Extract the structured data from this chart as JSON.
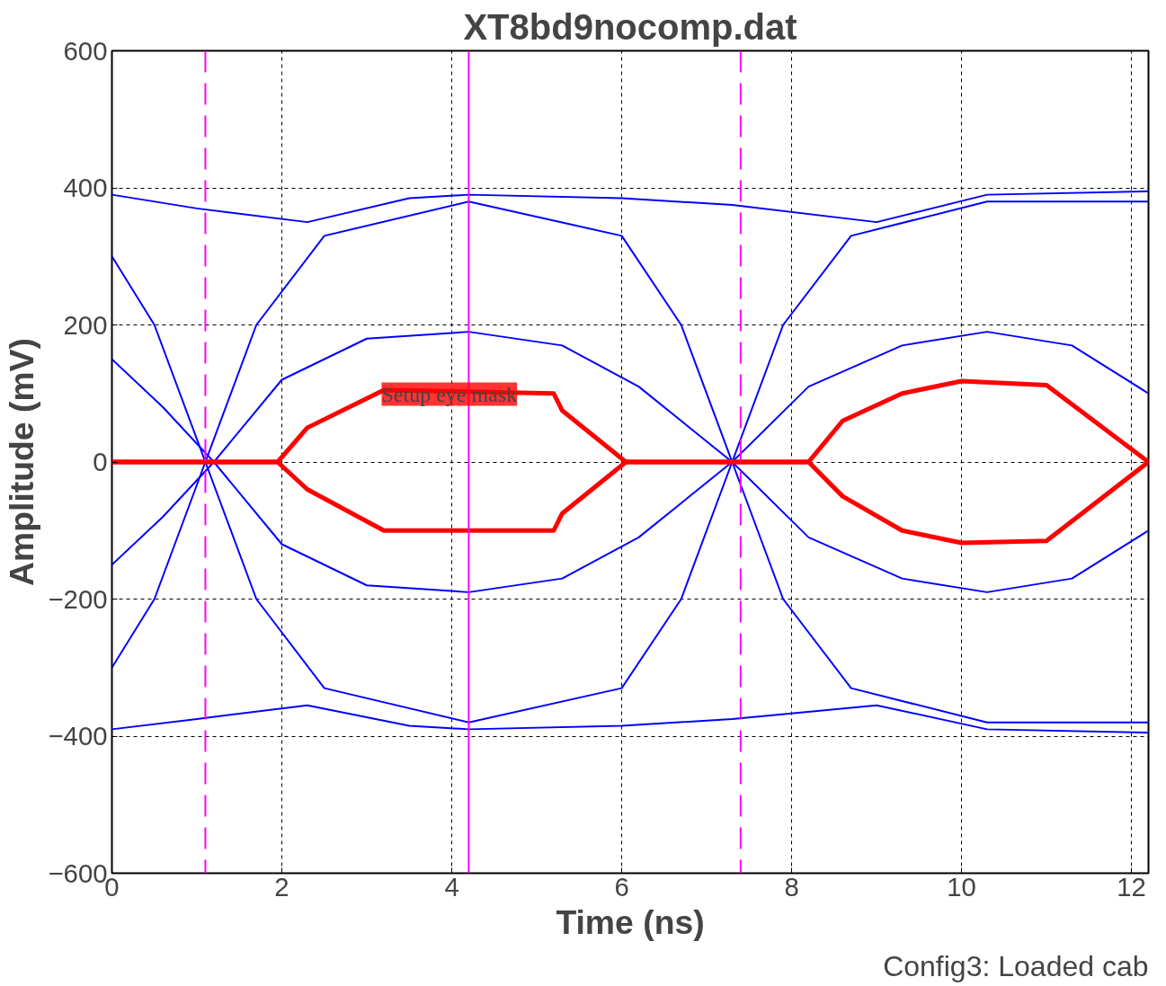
{
  "chart_data": {
    "type": "line",
    "title": "XT8bd9nocomp.dat",
    "xlabel": "Time (ns)",
    "ylabel": "Amplitude (mV)",
    "xlim": [
      0,
      12.2
    ],
    "ylim": [
      -600,
      600
    ],
    "xticks": [
      0,
      2,
      4,
      6,
      8,
      10,
      12
    ],
    "yticks": [
      600,
      400,
      200,
      0,
      -200,
      -400,
      -600
    ],
    "grid": true,
    "series": [
      {
        "color": "#0000ff",
        "x": [
          0,
          1,
          2.3,
          3.5,
          4.2,
          6,
          7.3,
          9,
          10.3,
          12.2
        ],
        "values": [
          390,
          370,
          350,
          385,
          390,
          385,
          375,
          350,
          390,
          395
        ]
      },
      {
        "color": "#0000ff",
        "x": [
          0,
          1,
          2.3,
          3.5,
          4.2,
          6,
          7.3,
          9,
          10.3,
          12.2
        ],
        "values": [
          -390,
          -375,
          -355,
          -385,
          -390,
          -385,
          -375,
          -355,
          -390,
          -395
        ]
      },
      {
        "color": "#0000ff",
        "x": [
          0,
          0.5,
          1.1,
          1.7,
          2.5,
          4.2,
          6,
          6.7,
          7.3,
          7.9,
          8.7,
          10.3,
          12.2
        ],
        "values": [
          300,
          200,
          0,
          -200,
          -330,
          -380,
          -330,
          -200,
          0,
          200,
          330,
          380,
          380
        ]
      },
      {
        "color": "#0000ff",
        "x": [
          0,
          0.5,
          1.1,
          1.7,
          2.5,
          4.2,
          6,
          6.7,
          7.3,
          7.9,
          8.7,
          10.3,
          12.2
        ],
        "values": [
          -300,
          -200,
          0,
          200,
          330,
          380,
          330,
          200,
          0,
          -200,
          -330,
          -380,
          -380
        ]
      },
      {
        "color": "#0000ff",
        "x": [
          0,
          0.6,
          1.2,
          2,
          3,
          4.2,
          5.3,
          6.2,
          7.3,
          8.2,
          9.3,
          10.3,
          11.3,
          12.2
        ],
        "values": [
          150,
          80,
          0,
          -120,
          -180,
          -190,
          -170,
          -110,
          0,
          110,
          170,
          190,
          170,
          100
        ]
      },
      {
        "color": "#0000ff",
        "x": [
          0,
          0.6,
          1.2,
          2,
          3,
          4.2,
          5.3,
          6.2,
          7.3,
          8.2,
          9.3,
          10.3,
          11.3,
          12.2
        ],
        "values": [
          -150,
          -80,
          0,
          120,
          180,
          190,
          170,
          110,
          0,
          -110,
          -170,
          -190,
          -170,
          -100
        ]
      },
      {
        "color": "#ff0000",
        "x": [
          0,
          1.95,
          2.3,
          3.2,
          5.2,
          5.3,
          6.05,
          8.2,
          8.6,
          9.3,
          10,
          11,
          12.2
        ],
        "values": [
          0,
          0,
          50,
          105,
          100,
          75,
          0,
          0,
          60,
          100,
          118,
          112,
          0
        ]
      },
      {
        "color": "#ff0000",
        "x": [
          0,
          1.95,
          2.3,
          3.2,
          5.2,
          5.3,
          6.05,
          8.2,
          8.6,
          9.3,
          10,
          11,
          12.2
        ],
        "values": [
          0,
          0,
          -40,
          -100,
          -100,
          -75,
          0,
          0,
          -50,
          -100,
          -118,
          -115,
          0
        ]
      }
    ],
    "ref_lines": [
      {
        "axis": "x",
        "value": 1.1,
        "color": "#ff00ff",
        "line_style": "dashed"
      },
      {
        "axis": "x",
        "value": 4.2,
        "color": "#ff00ff",
        "line_style": "solid"
      },
      {
        "axis": "x",
        "value": 7.4,
        "color": "#ff00ff",
        "line_style": "dashed"
      }
    ],
    "annotations": [
      "Setup eye mask",
      "Config3: Loaded cab"
    ]
  }
}
